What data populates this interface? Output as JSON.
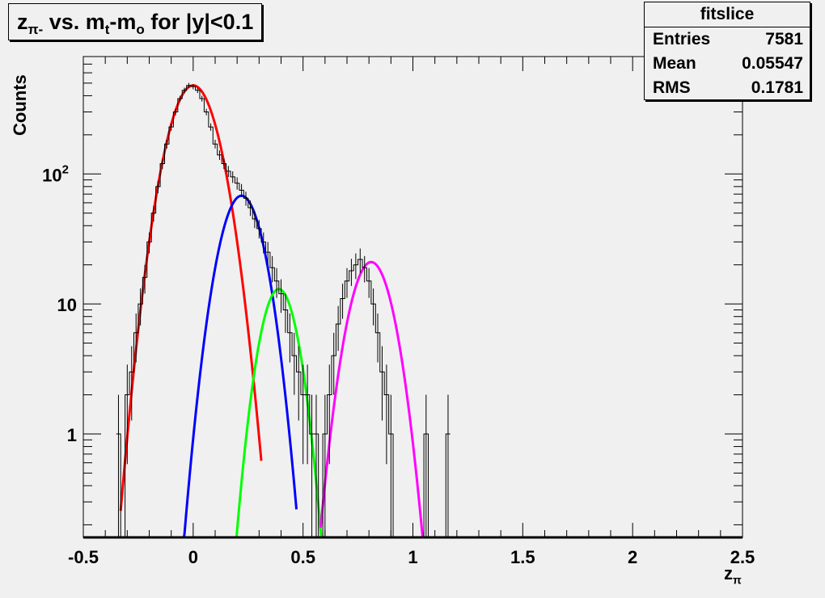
{
  "title": {
    "main": "z",
    "main_sub": "π-",
    "rest1": " vs. m",
    "sub_t": "t",
    "dash": "-m",
    "sub_o": "o",
    "rest2": " for |y|<0.1"
  },
  "stats": {
    "name": "fitslice",
    "rows": [
      {
        "label": "Entries",
        "value": "7581"
      },
      {
        "label": "Mean",
        "value": "0.05547"
      },
      {
        "label": "RMS",
        "value": "0.1781"
      }
    ]
  },
  "axes": {
    "ylabel": "Counts",
    "xlabel_main": "z",
    "xlabel_sub": "π"
  },
  "colors": {
    "frame_bg": "#f0f0f0",
    "histogram": "#000000",
    "red": "#ff0000",
    "blue": "#0000ff",
    "green": "#00ff00",
    "magenta": "#ff00ff"
  },
  "chart_data": {
    "type": "line",
    "yscale": "log",
    "xlim": [
      -0.5,
      2.5
    ],
    "ylim": [
      0.16,
      800
    ],
    "xticks": [
      -0.5,
      0,
      0.5,
      1,
      1.5,
      2,
      2.5
    ],
    "xtick_labels": [
      "-0.5",
      "0",
      "0.5",
      "1",
      "1.5",
      "2",
      "2.5"
    ],
    "yticks": [
      1,
      10,
      100
    ],
    "ytick_labels": [
      "1",
      "10",
      "10^2"
    ],
    "histogram": {
      "name": "data",
      "x": [
        -0.34,
        -0.32,
        -0.3,
        -0.28,
        -0.26,
        -0.24,
        -0.22,
        -0.2,
        -0.18,
        -0.16,
        -0.14,
        -0.12,
        -0.1,
        -0.08,
        -0.06,
        -0.04,
        -0.02,
        0.0,
        0.02,
        0.04,
        0.06,
        0.08,
        0.1,
        0.12,
        0.14,
        0.16,
        0.18,
        0.2,
        0.22,
        0.24,
        0.26,
        0.28,
        0.3,
        0.32,
        0.34,
        0.36,
        0.38,
        0.4,
        0.42,
        0.44,
        0.46,
        0.48,
        0.5,
        0.52,
        0.54,
        0.56,
        0.58,
        0.6,
        0.62,
        0.64,
        0.66,
        0.68,
        0.7,
        0.72,
        0.74,
        0.76,
        0.78,
        0.8,
        0.82,
        0.84,
        0.86,
        0.88,
        0.9,
        0.92,
        0.94,
        0.96,
        0.98,
        1.0,
        1.02,
        1.04,
        1.06,
        1.08,
        1.1,
        1.12,
        1.14,
        1.16
      ],
      "y": [
        1,
        0,
        2,
        3,
        6,
        10,
        16,
        30,
        50,
        80,
        120,
        170,
        230,
        300,
        380,
        440,
        480,
        470,
        440,
        380,
        300,
        230,
        170,
        140,
        120,
        105,
        95,
        85,
        75,
        65,
        55,
        45,
        38,
        30,
        25,
        19,
        15,
        12,
        9,
        6,
        4,
        3,
        2,
        2,
        1,
        1,
        0,
        1,
        2,
        4,
        7,
        11,
        15,
        18,
        20,
        22,
        19,
        15,
        10,
        6,
        3,
        2,
        1,
        0,
        0,
        0,
        0,
        0,
        0,
        0,
        1,
        0,
        0,
        0,
        0,
        1
      ]
    },
    "series": [
      {
        "name": "red",
        "color": "#ff0000",
        "amp": 480,
        "mean": 0.0,
        "sigma": 0.085,
        "range": [
          -0.33,
          0.31
        ]
      },
      {
        "name": "blue",
        "color": "#0000ff",
        "amp": 68,
        "mean": 0.22,
        "sigma": 0.075,
        "range": [
          -0.05,
          0.47
        ]
      },
      {
        "name": "green",
        "color": "#00ff00",
        "amp": 13,
        "mean": 0.39,
        "sigma": 0.065,
        "range": [
          0.17,
          0.6
        ]
      },
      {
        "name": "magenta",
        "color": "#ff00ff",
        "amp": 21,
        "mean": 0.81,
        "sigma": 0.075,
        "range": [
          0.58,
          1.05
        ]
      }
    ]
  }
}
